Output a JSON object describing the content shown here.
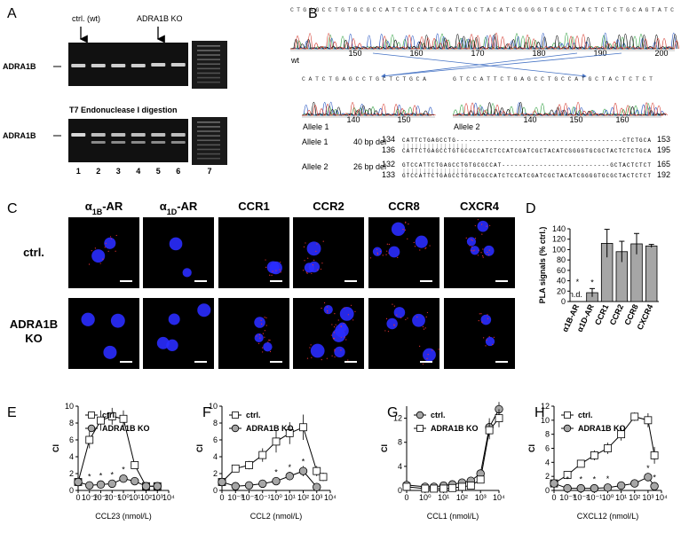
{
  "panel_a": {
    "label": "A",
    "arrow_labels": [
      "ctrl. (wt)",
      "ADRA1B KO"
    ],
    "band_labels": [
      "ADRA1B",
      "ADRA1B"
    ],
    "digest_title": "T7 Endonuclease I digestion",
    "lanes": [
      "1",
      "2",
      "3",
      "4",
      "5",
      "6",
      "7"
    ]
  },
  "panel_b": {
    "label": "B",
    "wt_sequence": "CTGAGCCTGTGCGCCATCTCCATCGATCGCTACATCGGGGTGCGCTACTCTCTGCAGTATC",
    "wt_axis": [
      "150",
      "160",
      "170",
      "180",
      "190",
      "200"
    ],
    "wt_label": "wt",
    "allele1_sequence": "CATCTGAGCCTGCTCTGCA",
    "allele1_axis": [
      "140",
      "150"
    ],
    "allele2_sequence": "GTCCATTCTGAGCCTGCCATGCTACTCTCT",
    "allele2_axis": [
      "140",
      "150",
      "160"
    ],
    "trace_labels": [
      "Allele 1",
      "Allele 2"
    ],
    "alignment": [
      {
        "allele": "Allele 1",
        "deletion": "40 bp del",
        "rows": [
          {
            "start": "134",
            "seq": "CATTCTGAGCCTG----------------------------------------CTCTGCA",
            "end": "153"
          },
          {
            "start": "136",
            "seq": "CATTCTGAGCCTGTGCGCCATCTCCATCGATCGCTACATCGGGGTGCGCTACTCTCTGCA",
            "end": "195"
          }
        ]
      },
      {
        "allele": "Allele 2",
        "deletion": "26 bp del",
        "rows": [
          {
            "start": "132",
            "seq": "GTCCATTCTGAGCCTGTGCGCCAT--------------------------GCTACTCTCT",
            "end": "165"
          },
          {
            "start": "133",
            "seq": "GTCCATTCTGAGCCTGTGCGCCATCTCCATCGATCGCTACATCGGGGTGCGCTACTCTCT",
            "end": "192"
          }
        ]
      }
    ]
  },
  "panel_c": {
    "label": "C",
    "columns": [
      [
        "α",
        "1B",
        "-AR"
      ],
      [
        "α",
        "1D",
        "-AR"
      ],
      [
        "CCR1"
      ],
      [
        "CCR2"
      ],
      [
        "CCR8"
      ],
      [
        "CXCR4"
      ]
    ],
    "rows": [
      "ctrl.",
      "ADRA1B KO"
    ]
  },
  "chart_data": [
    {
      "type": "bar",
      "panel": "D",
      "ylabel": "PLA signals (% ctrl.)",
      "categories": [
        "α1B-AR",
        "α1D-AR",
        "CCR1",
        "CCR2",
        "CCR8",
        "CXCR4"
      ],
      "values": [
        null,
        17,
        112,
        96,
        111,
        107
      ],
      "errors": [
        null,
        8,
        27,
        20,
        20,
        3
      ],
      "value_labels": [
        "n.d.",
        null,
        null,
        null,
        null,
        null
      ],
      "sig_label": "*",
      "sig_points": [
        0,
        1
      ],
      "color": "#a6a6a6",
      "ylim": [
        0,
        140
      ],
      "yticks": [
        0,
        20,
        40,
        60,
        80,
        100,
        120,
        140
      ]
    },
    {
      "type": "line",
      "panel": "E",
      "xlabel": "CCL23 (nmol/L)",
      "ylabel": "CI",
      "xscale": "log",
      "xlim": [
        0,
        10000
      ],
      "xticks": [
        0,
        {
          "value": 0.001,
          "label": "10⁻³"
        },
        {
          "value": 0.01,
          "label": "10⁻²"
        },
        {
          "value": 0.1,
          "label": "10⁻¹"
        },
        {
          "value": 1,
          "label": "10⁰"
        },
        {
          "value": 10,
          "label": "10¹"
        },
        {
          "value": 100,
          "label": "10²"
        },
        {
          "value": 1000,
          "label": "10³"
        },
        {
          "value": 10000,
          "label": "10⁴"
        }
      ],
      "ylim": [
        0,
        10
      ],
      "yticks": [
        0,
        2,
        4,
        6,
        8,
        10
      ],
      "legend": "upper left",
      "sig_label": "*",
      "x": [
        0,
        0.001,
        0.01,
        0.1,
        1,
        10,
        100,
        1000
      ],
      "series": [
        {
          "name": "ctrl.",
          "color": "#ffffff",
          "marker": "square",
          "values": [
            1,
            6,
            8.3,
            8.8,
            8.5,
            3,
            0.5,
            0.5
          ],
          "errors": [
            0.2,
            1,
            1.2,
            1,
            1,
            0.4,
            0.2,
            0.2
          ]
        },
        {
          "name": "ADRA1B KO",
          "color": "#a6a6a6",
          "marker": "circle",
          "values": [
            1,
            0.6,
            0.7,
            0.8,
            1.4,
            1.1,
            0.5,
            0.5
          ],
          "errors": [
            0.2,
            0.1,
            0.1,
            0.1,
            0.3,
            0.2,
            0.1,
            0.1
          ],
          "sig_points": [
            1,
            2,
            3,
            4
          ]
        }
      ]
    },
    {
      "type": "line",
      "panel": "F",
      "xlabel": "CCL2 (nmol/L)",
      "ylabel": "CI",
      "xscale": "log",
      "xlim": [
        0,
        10000
      ],
      "xticks": [
        0,
        {
          "value": 0.001,
          "label": "10⁻³"
        },
        {
          "value": 0.01,
          "label": "10⁻²"
        },
        {
          "value": 0.1,
          "label": "10⁻¹"
        },
        {
          "value": 1,
          "label": "10⁰"
        },
        {
          "value": 10,
          "label": "10¹"
        },
        {
          "value": 100,
          "label": "10²"
        },
        {
          "value": 1000,
          "label": "10³"
        },
        {
          "value": 10000,
          "label": "10⁴"
        }
      ],
      "ylim": [
        0,
        10
      ],
      "yticks": [
        0,
        2,
        4,
        6,
        8,
        10
      ],
      "legend": "upper left",
      "sig_label": "*",
      "x": [
        0,
        0.001,
        0.01,
        0.1,
        1,
        10,
        100,
        1000,
        3000
      ],
      "series": [
        {
          "name": "ctrl.",
          "color": "#ffffff",
          "marker": "square",
          "values": [
            1,
            2.6,
            3,
            4.2,
            5.8,
            6.8,
            7.5,
            2.3,
            1.6
          ],
          "errors": [
            0.2,
            0.4,
            0.5,
            0.8,
            1.3,
            1.3,
            1.5,
            0.6,
            0.5
          ]
        },
        {
          "name": "ADRA1B KO",
          "color": "#a6a6a6",
          "marker": "circle",
          "values": [
            1,
            0.5,
            0.6,
            0.8,
            1.1,
            1.7,
            2.3,
            0.4,
            null
          ],
          "errors": [
            0.2,
            0.1,
            0.1,
            0.2,
            0.3,
            0.5,
            0.6,
            0.1,
            null
          ],
          "sig_points": [
            4,
            5,
            6
          ]
        }
      ]
    },
    {
      "type": "line",
      "panel": "G",
      "xlabel": "CCL1 (nmol/L)",
      "ylabel": "CI",
      "xscale": "log",
      "xlim": [
        0,
        10000
      ],
      "xticks": [
        0,
        {
          "value": 1,
          "label": "10⁰"
        },
        {
          "value": 10,
          "label": "10¹"
        },
        {
          "value": 100,
          "label": "10²"
        },
        {
          "value": 1000,
          "label": "10³"
        },
        {
          "value": 10000,
          "label": "10⁴"
        }
      ],
      "ylim": [
        0,
        14
      ],
      "yticks": [
        0,
        4,
        8,
        12
      ],
      "legend": "upper left",
      "sig_label": "*",
      "x": [
        0,
        1,
        3,
        10,
        30,
        100,
        300,
        1000,
        3000,
        10000
      ],
      "series": [
        {
          "name": "ctrl.",
          "color": "#a6a6a6",
          "marker": "circle",
          "values": [
            0.9,
            0.6,
            0.6,
            0.8,
            1,
            1.3,
            1.6,
            2.8,
            10.5,
            13.5
          ],
          "errors": [
            0.2,
            0.2,
            0.2,
            0.2,
            0.2,
            0.3,
            0.3,
            0.5,
            1.5,
            1.2
          ]
        },
        {
          "name": "ADRA1B KO",
          "color": "#ffffff",
          "marker": "square",
          "values": [
            0.6,
            0.3,
            0.3,
            0.3,
            0.4,
            0.6,
            0.8,
            1.8,
            10,
            12
          ],
          "errors": [
            0.2,
            0.1,
            0.1,
            0.1,
            0.1,
            0.2,
            0.2,
            0.4,
            1.5,
            1.5
          ]
        }
      ]
    },
    {
      "type": "line",
      "panel": "H",
      "xlabel": "CXCL12 (nmol/L)",
      "ylabel": "CI",
      "xscale": "log",
      "xlim": [
        0,
        10000
      ],
      "xticks": [
        0,
        {
          "value": 0.001,
          "label": "10⁻³"
        },
        {
          "value": 0.01,
          "label": "10⁻²"
        },
        {
          "value": 0.1,
          "label": "10⁻¹"
        },
        {
          "value": 1,
          "label": "10⁰"
        },
        {
          "value": 10,
          "label": "10¹"
        },
        {
          "value": 100,
          "label": "10²"
        },
        {
          "value": 1000,
          "label": "10³"
        },
        {
          "value": 10000,
          "label": "10⁴"
        }
      ],
      "ylim": [
        0,
        12
      ],
      "yticks": [
        0,
        2,
        4,
        6,
        8,
        10,
        12
      ],
      "legend": "upper left",
      "sig_label": "*",
      "x": [
        0,
        0.001,
        0.01,
        0.1,
        1,
        10,
        100,
        1000,
        3000
      ],
      "series": [
        {
          "name": "ctrl.",
          "color": "#ffffff",
          "marker": "square",
          "values": [
            1,
            2.2,
            3.8,
            5,
            6,
            8,
            10.5,
            10,
            5
          ],
          "errors": [
            0.2,
            0.3,
            0.5,
            0.7,
            0.8,
            0.9,
            0.6,
            1,
            1.2
          ]
        },
        {
          "name": "ADRA1B KO",
          "color": "#a6a6a6",
          "marker": "circle",
          "values": [
            1,
            0.3,
            0.3,
            0.3,
            0.4,
            0.7,
            1,
            1.9,
            0.6
          ],
          "errors": [
            0.2,
            0.1,
            0.1,
            0.1,
            0.1,
            0.2,
            0.3,
            0.6,
            0.2
          ],
          "sig_points": [
            1,
            2,
            3,
            4,
            7,
            8
          ]
        }
      ]
    }
  ]
}
